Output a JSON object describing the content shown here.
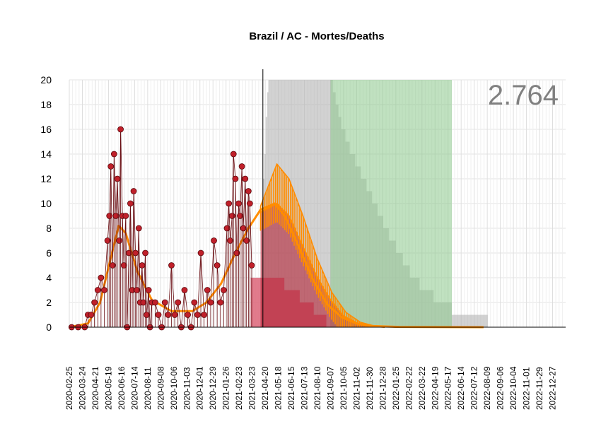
{
  "chart_data": {
    "type": "line",
    "title": "Brazil / AC - Mortes/Deaths",
    "annotation": "2.764",
    "xlabel": "",
    "ylabel": "",
    "ylim": [
      0,
      20
    ],
    "yticks": [
      0,
      2,
      4,
      6,
      8,
      10,
      12,
      14,
      16,
      18,
      20
    ],
    "xlim": [
      "2020-02-25",
      "2023-01-24"
    ],
    "xticks": [
      "2020-02-25",
      "2020-03-24",
      "2020-04-21",
      "2020-05-19",
      "2020-06-16",
      "2020-07-14",
      "2020-08-11",
      "2020-09-08",
      "2020-10-06",
      "2020-11-03",
      "2020-12-01",
      "2020-12-29",
      "2021-01-26",
      "2021-02-23",
      "2021-03-23",
      "2021-04-20",
      "2021-05-18",
      "2021-06-15",
      "2021-07-13",
      "2021-08-10",
      "2021-09-07",
      "2021-10-05",
      "2021-11-02",
      "2021-11-30",
      "2021-12-28",
      "2022-01-25",
      "2022-02-22",
      "2022-03-22",
      "2022-04-19",
      "2022-05-17",
      "2022-06-14",
      "2022-07-12",
      "2022-08-09",
      "2022-09-06",
      "2022-10-04",
      "2022-11-01",
      "2022-11-29",
      "2022-12-27"
    ],
    "grid": true,
    "today_line": "2021-04-15",
    "series": [
      {
        "kind": "observed daily deaths",
        "color": "#b22222",
        "points": [
          [
            "2020-03-01",
            0
          ],
          [
            "2020-03-15",
            0
          ],
          [
            "2020-03-29",
            0
          ],
          [
            "2020-04-05",
            1
          ],
          [
            "2020-04-12",
            1
          ],
          [
            "2020-04-19",
            2
          ],
          [
            "2020-04-26",
            3
          ],
          [
            "2020-05-03",
            4
          ],
          [
            "2020-05-10",
            3
          ],
          [
            "2020-05-17",
            7
          ],
          [
            "2020-05-21",
            9
          ],
          [
            "2020-05-24",
            13
          ],
          [
            "2020-05-28",
            5
          ],
          [
            "2020-05-31",
            14
          ],
          [
            "2020-06-04",
            9
          ],
          [
            "2020-06-07",
            12
          ],
          [
            "2020-06-11",
            7
          ],
          [
            "2020-06-14",
            16
          ],
          [
            "2020-06-18",
            9
          ],
          [
            "2020-06-21",
            5
          ],
          [
            "2020-06-25",
            9
          ],
          [
            "2020-06-28",
            0
          ],
          [
            "2020-07-02",
            6
          ],
          [
            "2020-07-05",
            10
          ],
          [
            "2020-07-09",
            3
          ],
          [
            "2020-07-12",
            11
          ],
          [
            "2020-07-16",
            6
          ],
          [
            "2020-07-19",
            3
          ],
          [
            "2020-07-23",
            8
          ],
          [
            "2020-07-26",
            2
          ],
          [
            "2020-07-30",
            5
          ],
          [
            "2020-08-02",
            2
          ],
          [
            "2020-08-06",
            6
          ],
          [
            "2020-08-09",
            1
          ],
          [
            "2020-08-13",
            3
          ],
          [
            "2020-08-16",
            0
          ],
          [
            "2020-08-20",
            2
          ],
          [
            "2020-08-27",
            2
          ],
          [
            "2020-09-03",
            1
          ],
          [
            "2020-09-10",
            0
          ],
          [
            "2020-09-17",
            2
          ],
          [
            "2020-09-24",
            1
          ],
          [
            "2020-10-01",
            5
          ],
          [
            "2020-10-08",
            1
          ],
          [
            "2020-10-15",
            2
          ],
          [
            "2020-10-22",
            0
          ],
          [
            "2020-10-29",
            3
          ],
          [
            "2020-11-05",
            1
          ],
          [
            "2020-11-12",
            0
          ],
          [
            "2020-11-19",
            2
          ],
          [
            "2020-11-26",
            1
          ],
          [
            "2020-12-03",
            6
          ],
          [
            "2020-12-10",
            1
          ],
          [
            "2020-12-17",
            3
          ],
          [
            "2020-12-24",
            2
          ],
          [
            "2020-12-31",
            7
          ],
          [
            "2021-01-07",
            5
          ],
          [
            "2021-01-14",
            2
          ],
          [
            "2021-01-21",
            3
          ],
          [
            "2021-01-28",
            8
          ],
          [
            "2021-02-01",
            10
          ],
          [
            "2021-02-04",
            7
          ],
          [
            "2021-02-08",
            9
          ],
          [
            "2021-02-11",
            14
          ],
          [
            "2021-02-15",
            12
          ],
          [
            "2021-02-18",
            6
          ],
          [
            "2021-02-22",
            10
          ],
          [
            "2021-02-25",
            9
          ],
          [
            "2021-03-01",
            13
          ],
          [
            "2021-03-04",
            8
          ],
          [
            "2021-03-08",
            12
          ],
          [
            "2021-03-11",
            7
          ],
          [
            "2021-03-15",
            11
          ],
          [
            "2021-03-18",
            10
          ],
          [
            "2021-03-22",
            5
          ]
        ]
      },
      {
        "kind": "smoothed trend",
        "color": "#ff8c00",
        "points": [
          [
            "2020-02-25",
            0
          ],
          [
            "2020-04-05",
            0.3
          ],
          [
            "2020-05-01",
            2
          ],
          [
            "2020-05-20",
            5
          ],
          [
            "2020-06-10",
            8.2
          ],
          [
            "2020-06-25",
            7.6
          ],
          [
            "2020-07-20",
            4.5
          ],
          [
            "2020-08-20",
            2.2
          ],
          [
            "2020-10-01",
            1.3
          ],
          [
            "2020-11-15",
            1.3
          ],
          [
            "2020-12-15",
            2.0
          ],
          [
            "2021-01-15",
            3.5
          ],
          [
            "2021-02-15",
            6.0
          ],
          [
            "2021-03-15",
            8.0
          ],
          [
            "2021-04-10",
            9.5
          ],
          [
            "2021-05-10",
            10.0
          ],
          [
            "2021-06-01",
            9.0
          ],
          [
            "2021-07-01",
            6.5
          ],
          [
            "2021-08-01",
            3.8
          ],
          [
            "2021-09-01",
            1.8
          ],
          [
            "2021-10-01",
            0.8
          ],
          [
            "2021-11-01",
            0.3
          ],
          [
            "2021-12-01",
            0.1
          ],
          [
            "2022-02-01",
            0.02
          ],
          [
            "2022-08-01",
            0
          ]
        ]
      },
      {
        "kind": "projection upper envelope",
        "color": "#ff8c00",
        "points": [
          [
            "2021-04-10",
            9.8
          ],
          [
            "2021-05-15",
            13.2
          ],
          [
            "2021-06-10",
            12.0
          ],
          [
            "2021-07-10",
            9.0
          ],
          [
            "2021-08-10",
            5.5
          ],
          [
            "2021-09-10",
            2.8
          ],
          [
            "2021-10-10",
            1.2
          ],
          [
            "2021-11-10",
            0.4
          ],
          [
            "2021-12-10",
            0.1
          ],
          [
            "2022-01-25",
            0
          ]
        ]
      },
      {
        "kind": "projection mean",
        "color": "#b22222",
        "points": [
          [
            "2021-04-10",
            9.3
          ],
          [
            "2021-05-15",
            10.0
          ],
          [
            "2021-06-10",
            9.0
          ],
          [
            "2021-07-10",
            6.5
          ],
          [
            "2021-08-10",
            4.0
          ],
          [
            "2021-09-07",
            2.2
          ],
          [
            "2021-10-05",
            0.9
          ],
          [
            "2021-11-02",
            0.35
          ],
          [
            "2021-12-01",
            0.1
          ],
          [
            "2022-01-01",
            0
          ]
        ]
      }
    ],
    "bands": [
      {
        "kind": "projection lower band",
        "color": "#dc6478",
        "from": "2021-03-20",
        "to": "2021-09-07",
        "profile": [
          [
            "2021-03-20",
            4
          ],
          [
            "2021-05-15",
            4
          ],
          [
            "2021-06-15",
            3
          ],
          [
            "2021-07-15",
            2
          ],
          [
            "2021-08-15",
            1
          ],
          [
            "2021-09-07",
            0
          ]
        ]
      },
      {
        "kind": "grey projection band",
        "color": "#b4b4b4",
        "from": "2021-04-15",
        "to": "2022-08-10",
        "profile": [
          [
            "2021-04-15",
            12
          ],
          [
            "2021-04-25",
            20
          ],
          [
            "2021-09-07",
            20
          ],
          [
            "2021-10-01",
            16
          ],
          [
            "2021-11-15",
            12
          ],
          [
            "2022-01-01",
            8
          ],
          [
            "2022-03-01",
            4
          ],
          [
            "2022-05-01",
            2
          ],
          [
            "2022-06-14",
            1
          ],
          [
            "2022-08-10",
            1
          ]
        ]
      },
      {
        "kind": "green band",
        "color": "#8cc88c",
        "from": "2021-09-07",
        "to": "2022-05-25",
        "profile": [
          [
            "2021-09-07",
            20
          ],
          [
            "2022-05-25",
            20
          ]
        ]
      }
    ]
  }
}
